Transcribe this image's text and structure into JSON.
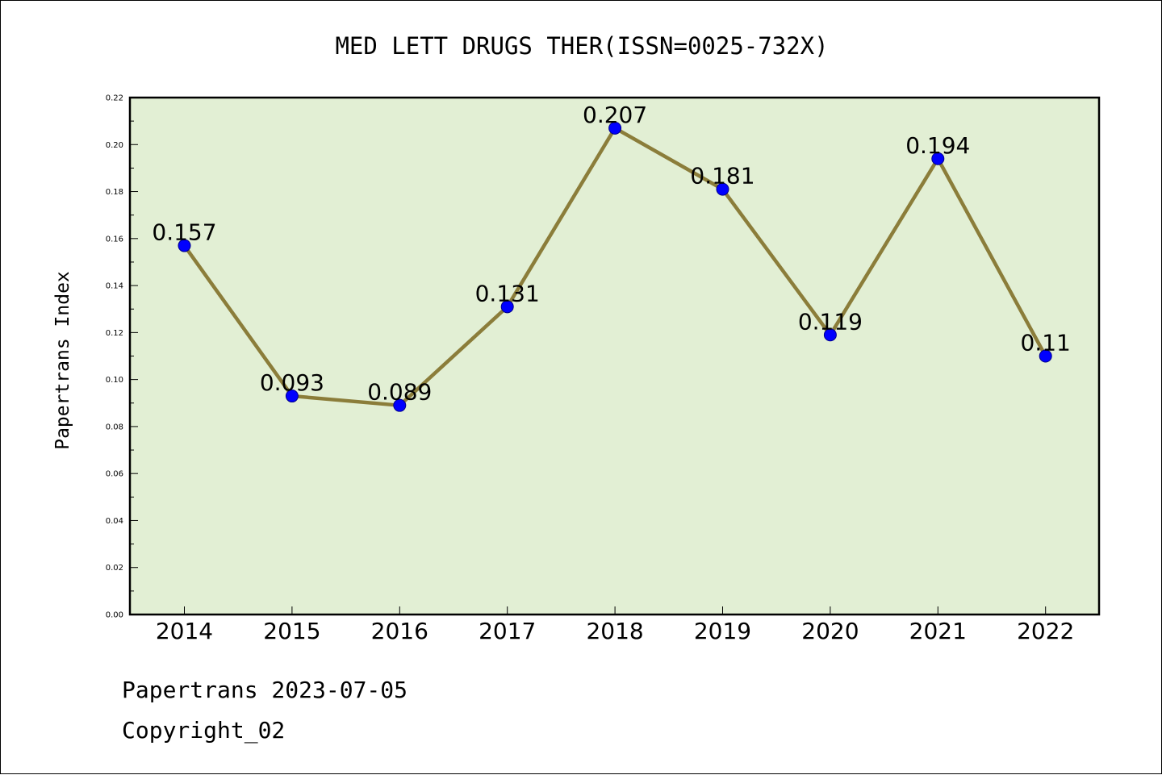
{
  "chart_data": {
    "type": "line",
    "title": "MED LETT DRUGS THER(ISSN=0025-732X)",
    "xlabel": "",
    "ylabel": "Papertrans Index",
    "categories": [
      "2014",
      "2015",
      "2016",
      "2017",
      "2018",
      "2019",
      "2020",
      "2021",
      "2022"
    ],
    "series": [
      {
        "values": [
          0.157,
          0.093,
          0.089,
          0.131,
          0.207,
          0.181,
          0.119,
          0.194,
          0.11
        ],
        "labels": [
          "0.157",
          "0.093",
          "0.089",
          "0.131",
          "0.207",
          "0.181",
          "0.119",
          "0.194",
          "0.11"
        ]
      }
    ],
    "ylim": [
      0,
      0.22
    ],
    "yticks": [
      "0.00",
      "0.02",
      "0.04",
      "0.06",
      "0.08",
      "0.10",
      "0.12",
      "0.14",
      "0.16",
      "0.18",
      "0.20",
      "0.22"
    ],
    "grid": false,
    "legend": "none"
  },
  "colors": {
    "plot_background": "#e2efd4",
    "line": "#8b7d3a",
    "marker": "#0000ff",
    "marker_edge": "#00008b"
  },
  "footer": {
    "line1": "Papertrans 2023-07-05",
    "line2": "Copyright_02"
  }
}
